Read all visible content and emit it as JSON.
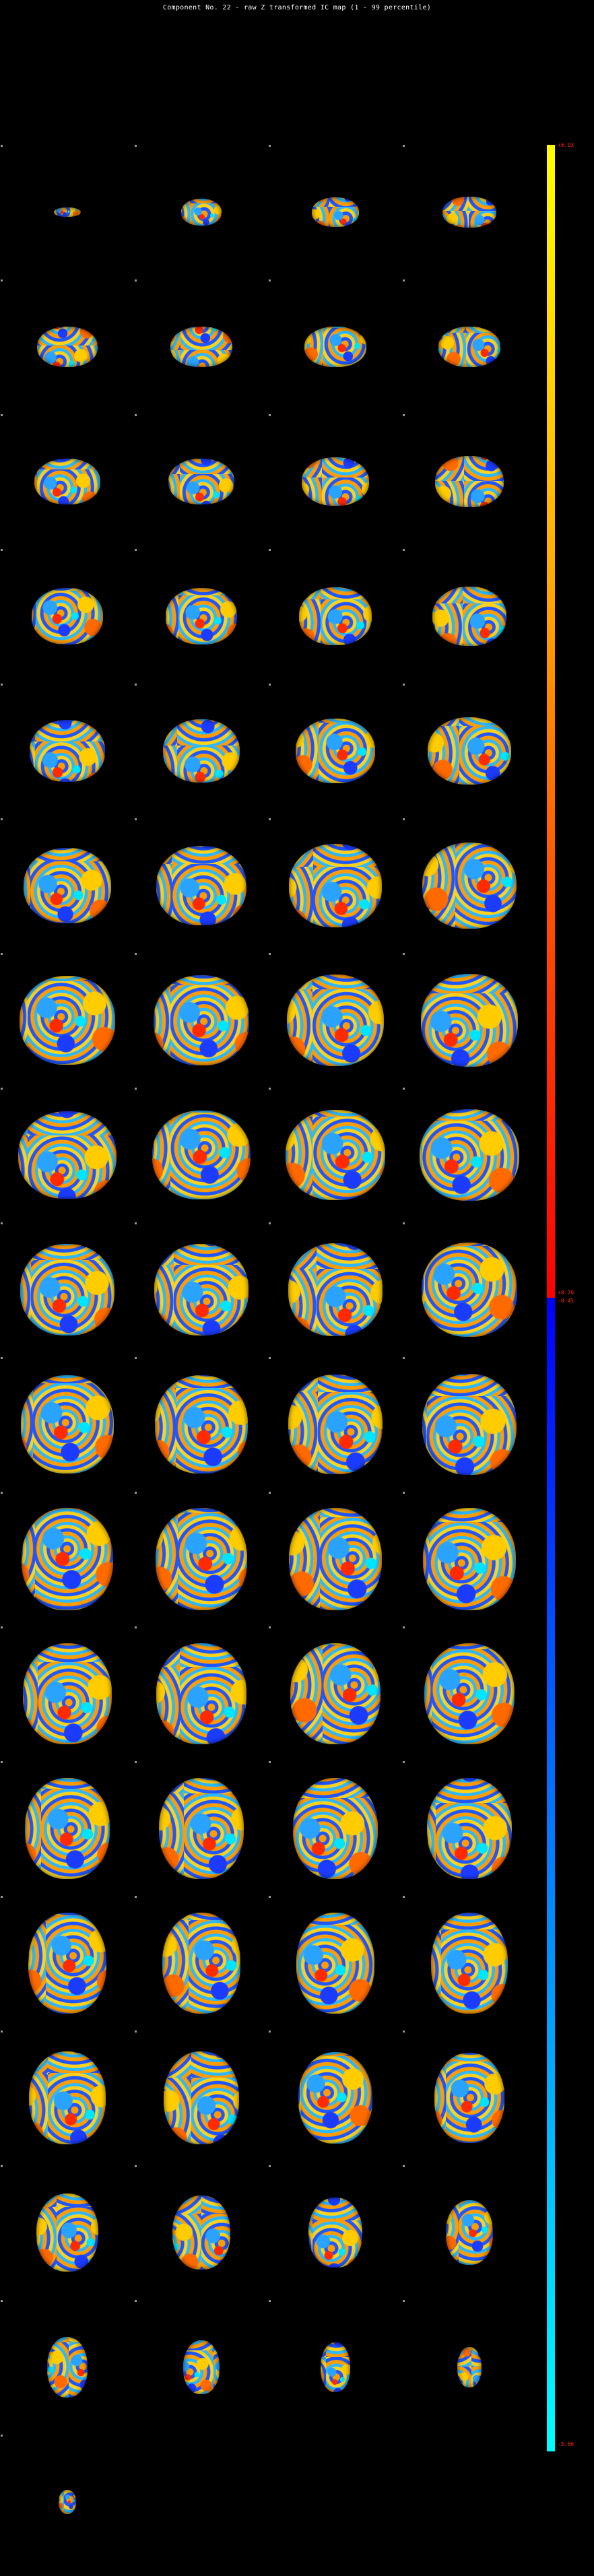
{
  "title": "Component No. 22 - raw Z transformed IC map (1 - 99 percentile)",
  "colorbar": {
    "max_label": "+6.03",
    "pos_threshold_label": "+0.70",
    "neg_threshold_label": "-0.45",
    "min_label": "-5.66",
    "positive_colors": [
      "#ff0000",
      "#ffff00"
    ],
    "negative_colors": [
      "#0000ff",
      "#00ffff"
    ]
  },
  "slices": {
    "count": 69,
    "columns": 4,
    "description_colormap": "hot/cool overlay"
  }
}
